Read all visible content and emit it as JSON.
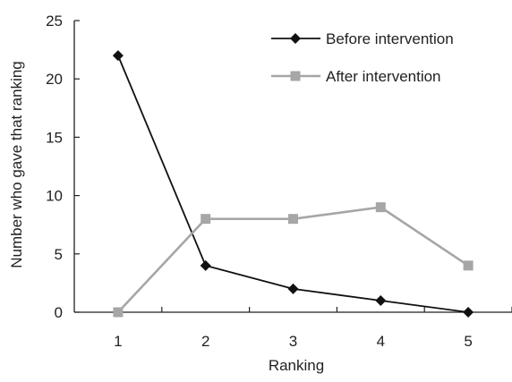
{
  "chart_data": {
    "type": "line",
    "title": "",
    "xlabel": "Ranking",
    "ylabel": "Number who gave that ranking",
    "x": [
      1,
      2,
      3,
      4,
      5
    ],
    "xlim": [
      0.5,
      5.5
    ],
    "ylim": [
      0,
      25
    ],
    "yticks": [
      0,
      5,
      10,
      15,
      20,
      25
    ],
    "xticks": [
      1,
      2,
      3,
      4,
      5
    ],
    "grid": false,
    "legend_position": "top-right",
    "series": [
      {
        "name": "Before intervention",
        "values": [
          22,
          4,
          2,
          1,
          0
        ],
        "color": "#111111",
        "marker": "diamond"
      },
      {
        "name": "After intervention",
        "values": [
          0,
          8,
          8,
          9,
          4
        ],
        "color": "#a6a6a6",
        "marker": "square"
      }
    ]
  }
}
